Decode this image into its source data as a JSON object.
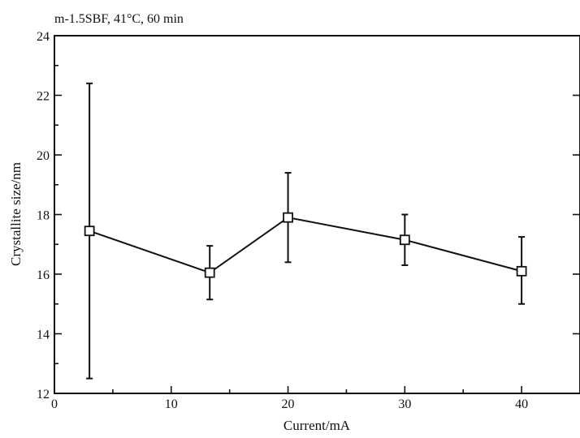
{
  "chart_data": {
    "type": "line",
    "title": "m-1.5SBF, 41°C, 60 min",
    "xlabel": "Current/mA",
    "ylabel": "Crystallite size/nm",
    "xlim": [
      0,
      45
    ],
    "ylim": [
      12,
      24
    ],
    "x_ticks": [
      0,
      10,
      20,
      30,
      40
    ],
    "x_tick_labels": [
      "0",
      "10",
      "20",
      "30",
      "40"
    ],
    "y_ticks": [
      12,
      14,
      16,
      18,
      20,
      22,
      24
    ],
    "y_tick_labels": [
      "12",
      "14",
      "16",
      "18",
      "20",
      "22",
      "24"
    ],
    "grid": false,
    "legend": "none",
    "marker": "open-square",
    "series": [
      {
        "x": [
          3,
          13.3,
          20,
          30,
          40
        ],
        "y": [
          17.45,
          16.05,
          17.9,
          17.15,
          16.1
        ],
        "y_err_low": [
          12.5,
          15.15,
          16.4,
          16.3,
          15.0
        ],
        "y_err_high": [
          22.4,
          16.95,
          19.4,
          18.0,
          17.25
        ]
      }
    ],
    "colors": {
      "line": "#111111",
      "marker_fill": "#ffffff"
    }
  }
}
